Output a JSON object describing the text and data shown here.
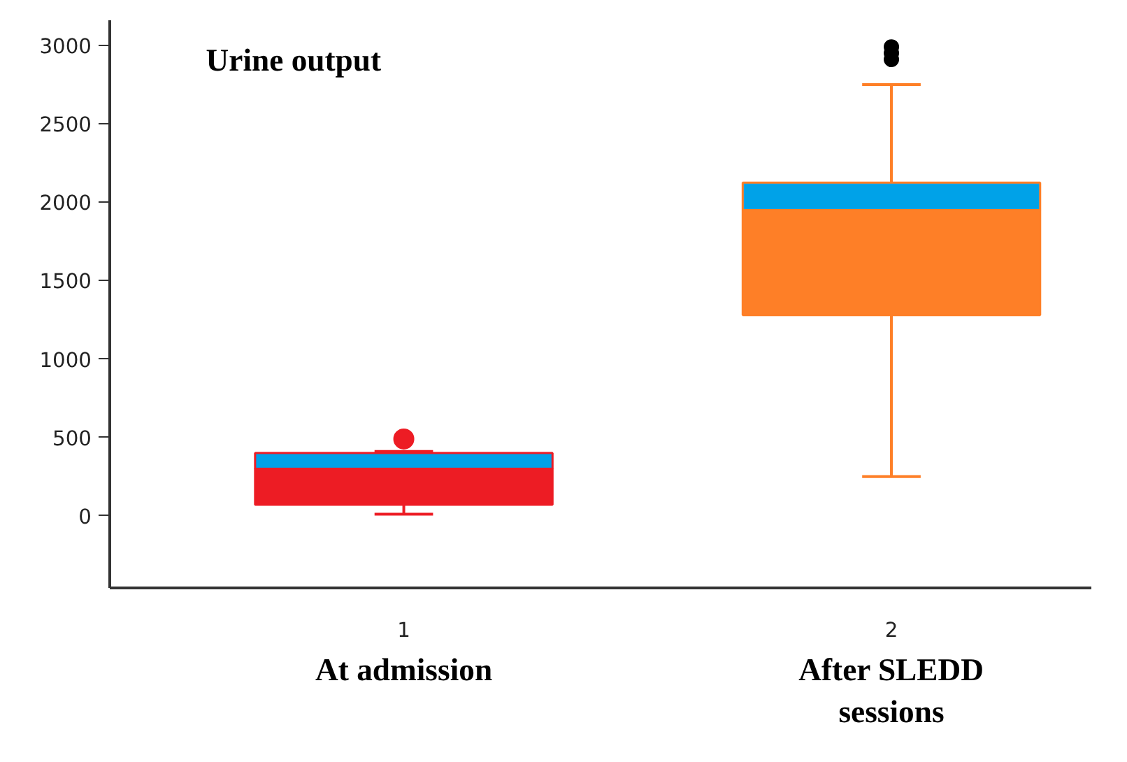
{
  "chart_data": {
    "type": "box",
    "title": "Urine output",
    "categories": [
      "1",
      "2"
    ],
    "boxes": [
      {
        "low": 10,
        "q1": 70,
        "median": 300,
        "q3": 400,
        "high": 410,
        "outliers": [
          490
        ]
      },
      {
        "low": 250,
        "q1": 1280,
        "median": 1950,
        "q3": 2125,
        "high": 2750
      }
    ],
    "colors": [
      "#ed1c24",
      "#fe7f27"
    ],
    "color": "#00a2e8",
    "series": [
      {
        "type": "scatter",
        "x": [
          "2",
          "2",
          "2"
        ],
        "values": [
          2910,
          2950,
          2990
        ],
        "color": "#000000"
      }
    ],
    "ylim": [
      -460,
      3160
    ],
    "yticks": [
      0,
      500,
      1000,
      1500,
      2000,
      2500,
      3000
    ],
    "annotations": [
      "At admission",
      "After SLEDD sessions"
    ]
  }
}
